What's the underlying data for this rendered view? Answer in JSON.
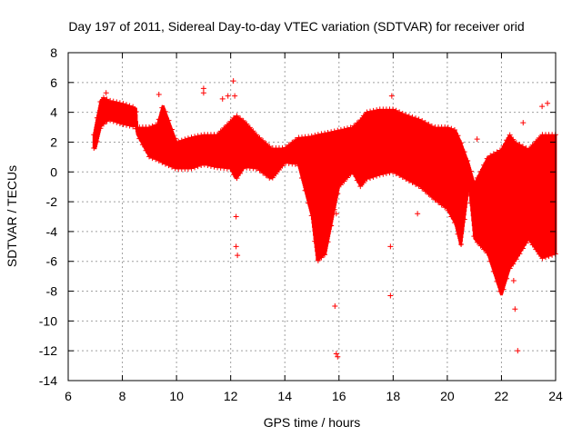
{
  "chart_data": {
    "type": "scatter",
    "title": "Day 197 of 2011, Sidereal Day-to-day VTEC variation (SDTVAR) for receiver orid",
    "xlabel": "GPS time / hours",
    "ylabel": "SDTVAR / TECUs",
    "xlim": [
      6,
      24
    ],
    "ylim": [
      -14,
      8
    ],
    "xticks": [
      6,
      8,
      10,
      12,
      14,
      16,
      18,
      20,
      22,
      24
    ],
    "yticks": [
      -14,
      -12,
      -10,
      -8,
      -6,
      -4,
      -2,
      0,
      2,
      4,
      6,
      8
    ],
    "grid": true,
    "marker": "+",
    "color": "#ff0000",
    "series": [
      {
        "name": "SDTVAR",
        "envelope": {
          "x": [
            6.95,
            7.0,
            7.2,
            7.3,
            7.5,
            8.0,
            8.5,
            8.55,
            9.0,
            9.3,
            9.5,
            10.0,
            10.5,
            11.0,
            11.5,
            12.0,
            12.2,
            12.5,
            13.0,
            13.5,
            14.0,
            14.5,
            15.0,
            15.2,
            15.5,
            16.0,
            16.5,
            16.8,
            17.0,
            17.5,
            18.0,
            18.5,
            19.0,
            19.5,
            20.0,
            20.3,
            20.5,
            20.8,
            21.0,
            21.5,
            22.0,
            22.3,
            22.5,
            23.0,
            23.5,
            24.0
          ],
          "upper": [
            2.5,
            3.0,
            4.8,
            5.0,
            4.8,
            4.6,
            4.3,
            3.0,
            3.0,
            3.2,
            4.5,
            2.0,
            2.3,
            2.5,
            2.5,
            3.4,
            3.8,
            3.4,
            2.4,
            1.6,
            1.6,
            2.3,
            2.4,
            2.5,
            2.6,
            2.8,
            3.0,
            3.5,
            4.0,
            4.2,
            4.2,
            3.8,
            3.5,
            3.0,
            3.0,
            2.8,
            2.0,
            0.5,
            -0.8,
            1.0,
            1.5,
            2.5,
            2.0,
            1.5,
            2.5,
            2.5
          ],
          "lower": [
            1.6,
            1.5,
            3.0,
            3.2,
            3.5,
            3.2,
            3.0,
            2.5,
            1.0,
            0.8,
            0.6,
            0.2,
            0.2,
            0.5,
            0.3,
            0.2,
            -0.5,
            0.3,
            0.2,
            -0.5,
            0.6,
            0.5,
            -3.0,
            -6.0,
            -5.5,
            -1.0,
            0.0,
            -1.0,
            -0.5,
            -0.2,
            0.0,
            -0.5,
            -1.0,
            -1.8,
            -2.5,
            -3.5,
            -5.0,
            -0.8,
            -4.5,
            -5.5,
            -8.3,
            -6.5,
            -6.0,
            -4.5,
            -5.8,
            -5.5
          ]
        },
        "outliers": {
          "x": [
            7.4,
            9.35,
            11.0,
            11.0,
            11.7,
            11.9,
            12.1,
            12.15,
            12.2,
            12.2,
            12.25,
            15.85,
            15.9,
            15.95,
            15.9,
            17.9,
            17.9,
            17.95,
            18.9,
            21.1,
            22.4,
            22.45,
            22.5,
            22.6,
            22.8,
            23.5,
            23.7
          ],
          "y": [
            5.3,
            5.2,
            5.6,
            5.3,
            4.9,
            5.1,
            6.1,
            5.1,
            -3.0,
            -5.0,
            -5.6,
            -9.0,
            -12.2,
            -12.4,
            -2.8,
            -5.0,
            -8.3,
            5.1,
            -2.8,
            2.2,
            -2.8,
            -7.3,
            -9.2,
            -12.0,
            3.3,
            4.4,
            4.6
          ]
        }
      }
    ]
  }
}
